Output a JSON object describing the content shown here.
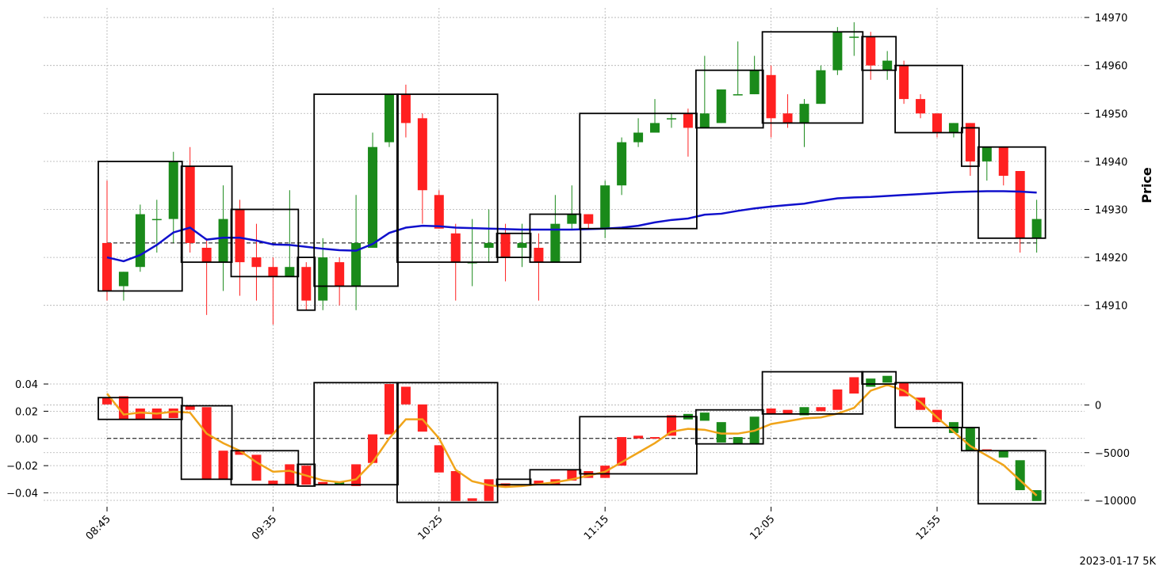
{
  "footer": "2023-01-17 5K",
  "colors": {
    "up": "#1a8a1a",
    "down": "#ff2020",
    "ma_price": "#1010cc",
    "ma_indicator": "#f0a41a",
    "box": "#000000",
    "grid": "#b0b0b0",
    "reference": "#000000"
  },
  "chart_data": [
    {
      "type": "candlestick",
      "panel": "price",
      "ylabel": "Price",
      "ylim": [
        14905,
        14971
      ],
      "yticks": [
        14910,
        14920,
        14930,
        14940,
        14950,
        14960,
        14970
      ],
      "x_tick_labels": [
        "08:45",
        "09:35",
        "10:25",
        "11:15",
        "12:05",
        "12:55"
      ],
      "x_tick_indices": [
        0,
        10,
        20,
        30,
        40,
        50
      ],
      "reference_line": 14923,
      "grid": true,
      "candles": [
        [
          14923,
          14936,
          14911,
          14913
        ],
        [
          14914,
          14917,
          14911,
          14917
        ],
        [
          14918,
          14931,
          14917,
          14929
        ],
        [
          14928,
          14932,
          14921,
          14928
        ],
        [
          14928,
          14942,
          14923,
          14940
        ],
        [
          14939,
          14943,
          14921,
          14923
        ],
        [
          14922,
          14924,
          14908,
          14919
        ],
        [
          14919,
          14935,
          14913,
          14928
        ],
        [
          14930,
          14932,
          14912,
          14919
        ],
        [
          14920,
          14927,
          14911,
          14918
        ],
        [
          14918,
          14920,
          14906,
          14916
        ],
        [
          14916,
          14934,
          14916,
          14918
        ],
        [
          14918,
          14919,
          14909,
          14911
        ],
        [
          14911,
          14924,
          14909,
          14920
        ],
        [
          14919,
          14920,
          14910,
          14914
        ],
        [
          14914,
          14933,
          14909,
          14923
        ],
        [
          14922,
          14946,
          14922,
          14943
        ],
        [
          14944,
          14954,
          14943,
          14954
        ],
        [
          14954,
          14956,
          14945,
          14948
        ],
        [
          14949,
          14950,
          14927,
          14934
        ],
        [
          14933,
          14934,
          14926,
          14926
        ],
        [
          14925,
          14927,
          14911,
          14919
        ],
        [
          14919,
          14928,
          14914,
          14919
        ],
        [
          14922,
          14930,
          14919,
          14923
        ],
        [
          14925,
          14927,
          14915,
          14920
        ],
        [
          14922,
          14927,
          14918,
          14923
        ],
        [
          14922,
          14925,
          14911,
          14919
        ],
        [
          14919,
          14933,
          14919,
          14927
        ],
        [
          14927,
          14935,
          14926,
          14929
        ],
        [
          14929,
          14929,
          14926,
          14927
        ],
        [
          14926,
          14936,
          14924,
          14935
        ],
        [
          14935,
          14945,
          14933,
          14944
        ],
        [
          14944,
          14949,
          14943,
          14946
        ],
        [
          14946,
          14953,
          14946,
          14948
        ],
        [
          14949,
          14950,
          14947,
          14949
        ],
        [
          14950,
          14951,
          14941,
          14947
        ],
        [
          14947,
          14962,
          14947,
          14950
        ],
        [
          14948,
          14955,
          14948,
          14955
        ],
        [
          14954,
          14965,
          14954,
          14954
        ],
        [
          14954,
          14962,
          14954,
          14959
        ],
        [
          14958,
          14960,
          14945,
          14949
        ],
        [
          14950,
          14954,
          14947,
          14948
        ],
        [
          14948,
          14953,
          14943,
          14952
        ],
        [
          14952,
          14960,
          14952,
          14959
        ],
        [
          14959,
          14968,
          14958,
          14967
        ],
        [
          14966,
          14969,
          14962,
          14966
        ],
        [
          14966,
          14967,
          14957,
          14960
        ],
        [
          14959,
          14963,
          14957,
          14961
        ],
        [
          14960,
          14961,
          14952,
          14953
        ],
        [
          14953,
          14954,
          14949,
          14950
        ],
        [
          14950,
          14950,
          14945,
          14946
        ],
        [
          14946,
          14948,
          14945,
          14948
        ],
        [
          14948,
          14948,
          14937,
          14940
        ],
        [
          14940,
          14943,
          14936,
          14943
        ],
        [
          14943,
          14943,
          14935,
          14937
        ],
        [
          14938,
          14938,
          14921,
          14924
        ],
        [
          14924,
          14932,
          14921,
          14928
        ]
      ],
      "moving_average": [
        14920,
        14919.2,
        14920.5,
        14922.6,
        14925.2,
        14926.2,
        14923.7,
        14924.1,
        14924.1,
        14923.5,
        14922.7,
        14922.6,
        14922.2,
        14921.8,
        14921.5,
        14921.4,
        14922.8,
        14925.1,
        14926.2,
        14926.6,
        14926.5,
        14926.2,
        14926.1,
        14926.0,
        14925.9,
        14925.8,
        14925.8,
        14925.8,
        14925.8,
        14925.9,
        14926.0,
        14926.2,
        14926.6,
        14927.3,
        14927.8,
        14928.1,
        14928.9,
        14929.1,
        14929.7,
        14930.2,
        14930.6,
        14930.9,
        14931.2,
        14931.8,
        14932.3,
        14932.5,
        14932.6,
        14932.8,
        14933.0,
        14933.2,
        14933.4,
        14933.6,
        14933.7,
        14933.8,
        14933.8,
        14933.7,
        14933.5
      ],
      "boxes": [
        [
          0,
          4,
          14913,
          14940
        ],
        [
          5,
          7,
          14919,
          14939
        ],
        [
          8,
          11,
          14916,
          14930
        ],
        [
          12,
          12,
          14909,
          14920
        ],
        [
          13,
          17,
          14914,
          14954
        ],
        [
          18,
          23,
          14919,
          14954
        ],
        [
          24,
          25,
          14920,
          14925
        ],
        [
          26,
          28,
          14919,
          14929
        ],
        [
          29,
          35,
          14926,
          14950
        ],
        [
          36,
          39,
          14947,
          14959
        ],
        [
          40,
          45,
          14948,
          14967
        ],
        [
          46,
          47,
          14959,
          14966
        ],
        [
          48,
          51,
          14946,
          14960
        ],
        [
          52,
          52,
          14939,
          14947
        ],
        [
          53,
          56,
          14924,
          14943
        ]
      ]
    },
    {
      "type": "bar",
      "panel": "indicator",
      "left_axis": {
        "ylim": [
          -0.049,
          0.047
        ],
        "yticks": [
          0.04,
          0.02,
          0.0,
          -0.02,
          -0.04
        ],
        "tick_labels": [
          "0.04",
          "0.02",
          "0.00",
          "−0.02",
          "−0.04"
        ]
      },
      "right_axis": {
        "ylim": [
          -10500,
          3200
        ],
        "yticks": [
          0,
          -5000,
          -10000
        ],
        "tick_labels": [
          "0",
          "−5000",
          "−10000"
        ]
      },
      "reference_line": 0.0,
      "bars": [
        [
          0.03,
          0.025
        ],
        [
          0.031,
          0.014
        ],
        [
          0.022,
          0.014
        ],
        [
          0.022,
          0.014
        ],
        [
          0.022,
          0.015
        ],
        [
          0.024,
          0.021
        ],
        [
          0.023,
          -0.03
        ],
        [
          -0.009,
          -0.03
        ],
        [
          -0.009,
          -0.012
        ],
        [
          -0.012,
          -0.031
        ],
        [
          -0.031,
          -0.034
        ],
        [
          -0.019,
          -0.034
        ],
        [
          -0.02,
          -0.034
        ],
        [
          -0.032,
          -0.034
        ],
        [
          -0.034,
          -0.032
        ],
        [
          -0.019,
          -0.035
        ],
        [
          0.003,
          -0.018
        ],
        [
          0.04,
          0.003
        ],
        [
          0.038,
          0.025
        ],
        [
          0.025,
          0.005
        ],
        [
          -0.005,
          -0.025
        ],
        [
          -0.024,
          -0.046
        ],
        [
          -0.044,
          -0.046
        ],
        [
          -0.03,
          -0.046
        ],
        [
          -0.033,
          -0.036
        ],
        [
          -0.034,
          -0.035
        ],
        [
          -0.031,
          -0.034
        ],
        [
          -0.03,
          -0.034
        ],
        [
          -0.023,
          -0.031
        ],
        [
          -0.024,
          -0.029
        ],
        [
          -0.02,
          -0.029
        ],
        [
          0.001,
          -0.02
        ],
        [
          0.002,
          0.0
        ],
        [
          0.001,
          0.0
        ],
        [
          0.017,
          0.002
        ],
        [
          0.014,
          0.018
        ],
        [
          0.013,
          0.019
        ],
        [
          -0.003,
          0.012
        ],
        [
          -0.004,
          0.001
        ],
        [
          -0.004,
          0.016
        ],
        [
          0.022,
          0.018
        ],
        [
          0.021,
          0.018
        ],
        [
          0.017,
          0.023
        ],
        [
          0.023,
          0.02
        ],
        [
          0.036,
          0.021
        ],
        [
          0.045,
          0.033
        ],
        [
          0.038,
          0.044
        ],
        [
          0.041,
          0.046
        ],
        [
          0.041,
          0.031
        ],
        [
          0.03,
          0.021
        ],
        [
          0.021,
          0.012
        ],
        [
          0.004,
          0.012
        ],
        [
          -0.009,
          0.008
        ],
        [
          -0.008,
          -0.009
        ],
        [
          -0.014,
          -0.009
        ],
        [
          -0.038,
          -0.016
        ],
        [
          -0.046,
          -0.038
        ]
      ],
      "moving_average": [
        1200,
        -1000,
        -800,
        -900,
        -700,
        -800,
        -3000,
        -4000,
        -4800,
        -6000,
        -7000,
        -6900,
        -7400,
        -7900,
        -8100,
        -7800,
        -6000,
        -3500,
        -1500,
        -1500,
        -3500,
        -6800,
        -8000,
        -8400,
        -8600,
        -8500,
        -8300,
        -8100,
        -7800,
        -7400,
        -7000,
        -6000,
        -5000,
        -4000,
        -2800,
        -2500,
        -2600,
        -3000,
        -3000,
        -2700,
        -2000,
        -1700,
        -1400,
        -1300,
        -900,
        -300,
        1500,
        2100,
        1500,
        300,
        -1300,
        -2800,
        -4300,
        -5300,
        -6300,
        -7900,
        -9500
      ],
      "boxes": [
        [
          0,
          4,
          0.014,
          0.03
        ],
        [
          5,
          7,
          -0.03,
          0.024
        ],
        [
          8,
          11,
          -0.034,
          -0.009
        ],
        [
          12,
          12,
          -0.035,
          -0.019
        ],
        [
          13,
          17,
          -0.034,
          0.041
        ],
        [
          18,
          23,
          -0.047,
          0.041
        ],
        [
          24,
          25,
          -0.034,
          -0.03
        ],
        [
          26,
          28,
          -0.034,
          -0.023
        ],
        [
          29,
          35,
          -0.026,
          0.016
        ],
        [
          36,
          39,
          -0.004,
          0.021
        ],
        [
          40,
          45,
          0.018,
          0.049
        ],
        [
          46,
          47,
          0.04,
          0.049
        ],
        [
          48,
          51,
          0.008,
          0.041
        ],
        [
          52,
          52,
          -0.009,
          0.008
        ],
        [
          53,
          56,
          -0.048,
          -0.009
        ]
      ]
    }
  ]
}
